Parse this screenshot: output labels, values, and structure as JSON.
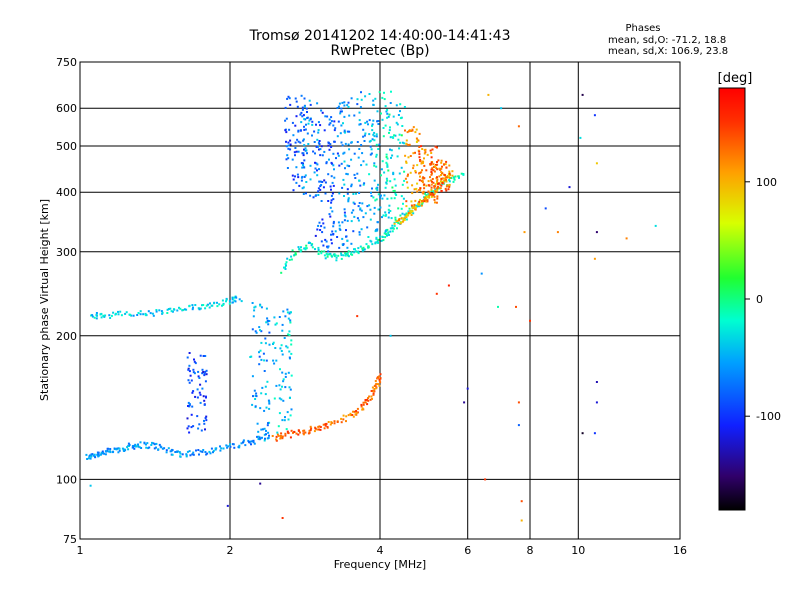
{
  "chart_data": {
    "type": "scatter",
    "title": "Tromsø 20141202 14:40:00-14:41:43",
    "subtitle": "RwPretec (Bp)",
    "xlabel": "Frequency [MHz]",
    "ylabel": "Stationary phase Virtual Height [km]",
    "x_scale": "log",
    "y_scale": "log",
    "xlim": [
      1,
      16
    ],
    "ylim": [
      75,
      750
    ],
    "x_ticks": [
      1,
      2,
      4,
      6,
      8,
      10,
      16
    ],
    "y_ticks": [
      75,
      100,
      200,
      300,
      400,
      500,
      600,
      750
    ],
    "grid": true,
    "stats": {
      "header": "Phases",
      "line1": "mean, sd,O: -71.2, 18.8",
      "line2": "mean, sd,X: 106.9, 23.8"
    },
    "colorbar": {
      "label": "[deg]",
      "min": -180,
      "max": 180,
      "ticks": [
        100,
        0,
        -100
      ]
    },
    "traces": [
      {
        "points": [
          [
            1.03,
            111
          ],
          [
            1.08,
            113
          ],
          [
            1.12,
            114
          ],
          [
            1.18,
            115
          ],
          [
            1.25,
            117
          ],
          [
            1.3,
            118
          ],
          [
            1.4,
            118
          ],
          [
            1.5,
            115
          ],
          [
            1.6,
            113
          ],
          [
            1.75,
            114
          ],
          [
            1.9,
            116
          ],
          [
            2.1,
            118
          ],
          [
            2.25,
            121
          ],
          [
            2.4,
            124
          ]
        ],
        "phase": -60
      },
      {
        "points": [
          [
            2.45,
            122
          ],
          [
            2.6,
            124
          ],
          [
            2.8,
            126
          ],
          [
            3.0,
            128
          ],
          [
            3.2,
            131
          ],
          [
            3.5,
            136
          ],
          [
            3.7,
            142
          ],
          [
            3.85,
            150
          ],
          [
            3.95,
            158
          ],
          [
            4.0,
            165
          ]
        ],
        "phase": 130
      },
      {
        "points": [
          [
            1.05,
            220
          ],
          [
            1.12,
            221
          ],
          [
            1.25,
            222
          ],
          [
            1.4,
            223
          ],
          [
            1.55,
            226
          ],
          [
            1.7,
            229
          ],
          [
            1.85,
            233
          ],
          [
            2.0,
            237
          ],
          [
            2.1,
            240
          ]
        ],
        "phase": -35
      },
      {
        "points": [
          [
            2.55,
            275
          ],
          [
            2.7,
            300
          ],
          [
            2.9,
            310
          ],
          [
            3.1,
            295
          ],
          [
            3.3,
            292
          ],
          [
            3.5,
            298
          ],
          [
            3.7,
            305
          ],
          [
            3.9,
            315
          ],
          [
            4.1,
            325
          ],
          [
            4.3,
            340
          ],
          [
            4.55,
            360
          ],
          [
            4.8,
            380
          ],
          [
            5.1,
            400
          ],
          [
            5.5,
            420
          ],
          [
            5.9,
            440
          ]
        ],
        "phase": -20
      },
      {
        "points": [
          [
            4.3,
            345
          ],
          [
            4.5,
            355
          ],
          [
            4.7,
            370
          ],
          [
            4.9,
            385
          ],
          [
            5.1,
            400
          ],
          [
            5.3,
            420
          ],
          [
            5.6,
            440
          ]
        ],
        "phase": 100
      }
    ],
    "columns": [
      {
        "f": 1.72,
        "h_min": 125,
        "h_max": 185,
        "phase": -95
      },
      {
        "f": 2.3,
        "h_min": 120,
        "h_max": 235,
        "phase": -55
      },
      {
        "f": 2.55,
        "h_min": 125,
        "h_max": 230,
        "phase": -40
      },
      {
        "f": 2.7,
        "h_min": 400,
        "h_max": 640,
        "phase": -85
      },
      {
        "f": 2.9,
        "h_min": 390,
        "h_max": 630,
        "phase": -65
      },
      {
        "f": 3.1,
        "h_min": 300,
        "h_max": 610,
        "phase": -90
      },
      {
        "f": 3.3,
        "h_min": 295,
        "h_max": 620,
        "phase": -75
      },
      {
        "f": 3.5,
        "h_min": 300,
        "h_max": 640,
        "phase": -60
      },
      {
        "f": 3.8,
        "h_min": 320,
        "h_max": 650,
        "phase": -50
      },
      {
        "f": 4.05,
        "h_min": 330,
        "h_max": 650,
        "phase": -35
      },
      {
        "f": 4.3,
        "h_min": 350,
        "h_max": 620,
        "phase": -20
      },
      {
        "f": 4.7,
        "h_min": 370,
        "h_max": 550,
        "phase": 110
      },
      {
        "f": 5.0,
        "h_min": 380,
        "h_max": 500,
        "phase": 130
      },
      {
        "f": 5.3,
        "h_min": 400,
        "h_max": 470,
        "phase": 125
      }
    ],
    "scatter": [
      {
        "f": 6.6,
        "h": 640,
        "phase": 100
      },
      {
        "f": 7.0,
        "h": 600,
        "phase": -40
      },
      {
        "f": 7.6,
        "h": 550,
        "phase": 130
      },
      {
        "f": 7.8,
        "h": 330,
        "phase": 110
      },
      {
        "f": 8.6,
        "h": 370,
        "phase": -90
      },
      {
        "f": 9.1,
        "h": 330,
        "phase": 120
      },
      {
        "f": 9.6,
        "h": 410,
        "phase": -120
      },
      {
        "f": 10.2,
        "h": 640,
        "phase": -160
      },
      {
        "f": 10.1,
        "h": 520,
        "phase": -30
      },
      {
        "f": 10.8,
        "h": 580,
        "phase": -100
      },
      {
        "f": 10.9,
        "h": 460,
        "phase": 90
      },
      {
        "f": 10.9,
        "h": 330,
        "phase": -150
      },
      {
        "f": 10.8,
        "h": 290,
        "phase": 110
      },
      {
        "f": 10.9,
        "h": 160,
        "phase": -130
      },
      {
        "f": 10.9,
        "h": 145,
        "phase": -120
      },
      {
        "f": 10.8,
        "h": 125,
        "phase": -100
      },
      {
        "f": 10.2,
        "h": 125,
        "phase": -170
      },
      {
        "f": 12.5,
        "h": 320,
        "phase": 120
      },
      {
        "f": 14.3,
        "h": 340,
        "phase": -30
      },
      {
        "f": 6.5,
        "h": 100,
        "phase": 150
      },
      {
        "f": 7.7,
        "h": 90,
        "phase": 140
      },
      {
        "f": 7.7,
        "h": 82,
        "phase": 100
      },
      {
        "f": 6.0,
        "h": 155,
        "phase": -120
      },
      {
        "f": 5.9,
        "h": 145,
        "phase": -140
      },
      {
        "f": 7.6,
        "h": 145,
        "phase": 140
      },
      {
        "f": 7.6,
        "h": 130,
        "phase": -80
      },
      {
        "f": 6.4,
        "h": 270,
        "phase": -60
      },
      {
        "f": 5.5,
        "h": 255,
        "phase": 160
      },
      {
        "f": 5.2,
        "h": 245,
        "phase": 150
      },
      {
        "f": 6.9,
        "h": 230,
        "phase": -10
      },
      {
        "f": 7.5,
        "h": 230,
        "phase": 140
      },
      {
        "f": 8.0,
        "h": 215,
        "phase": 150
      },
      {
        "f": 4.2,
        "h": 200,
        "phase": -40
      },
      {
        "f": 3.6,
        "h": 220,
        "phase": 150
      },
      {
        "f": 2.55,
        "h": 83,
        "phase": 150
      },
      {
        "f": 1.98,
        "h": 88,
        "phase": -120
      },
      {
        "f": 1.05,
        "h": 97,
        "phase": -40
      },
      {
        "f": 2.3,
        "h": 98,
        "phase": -140
      }
    ]
  }
}
